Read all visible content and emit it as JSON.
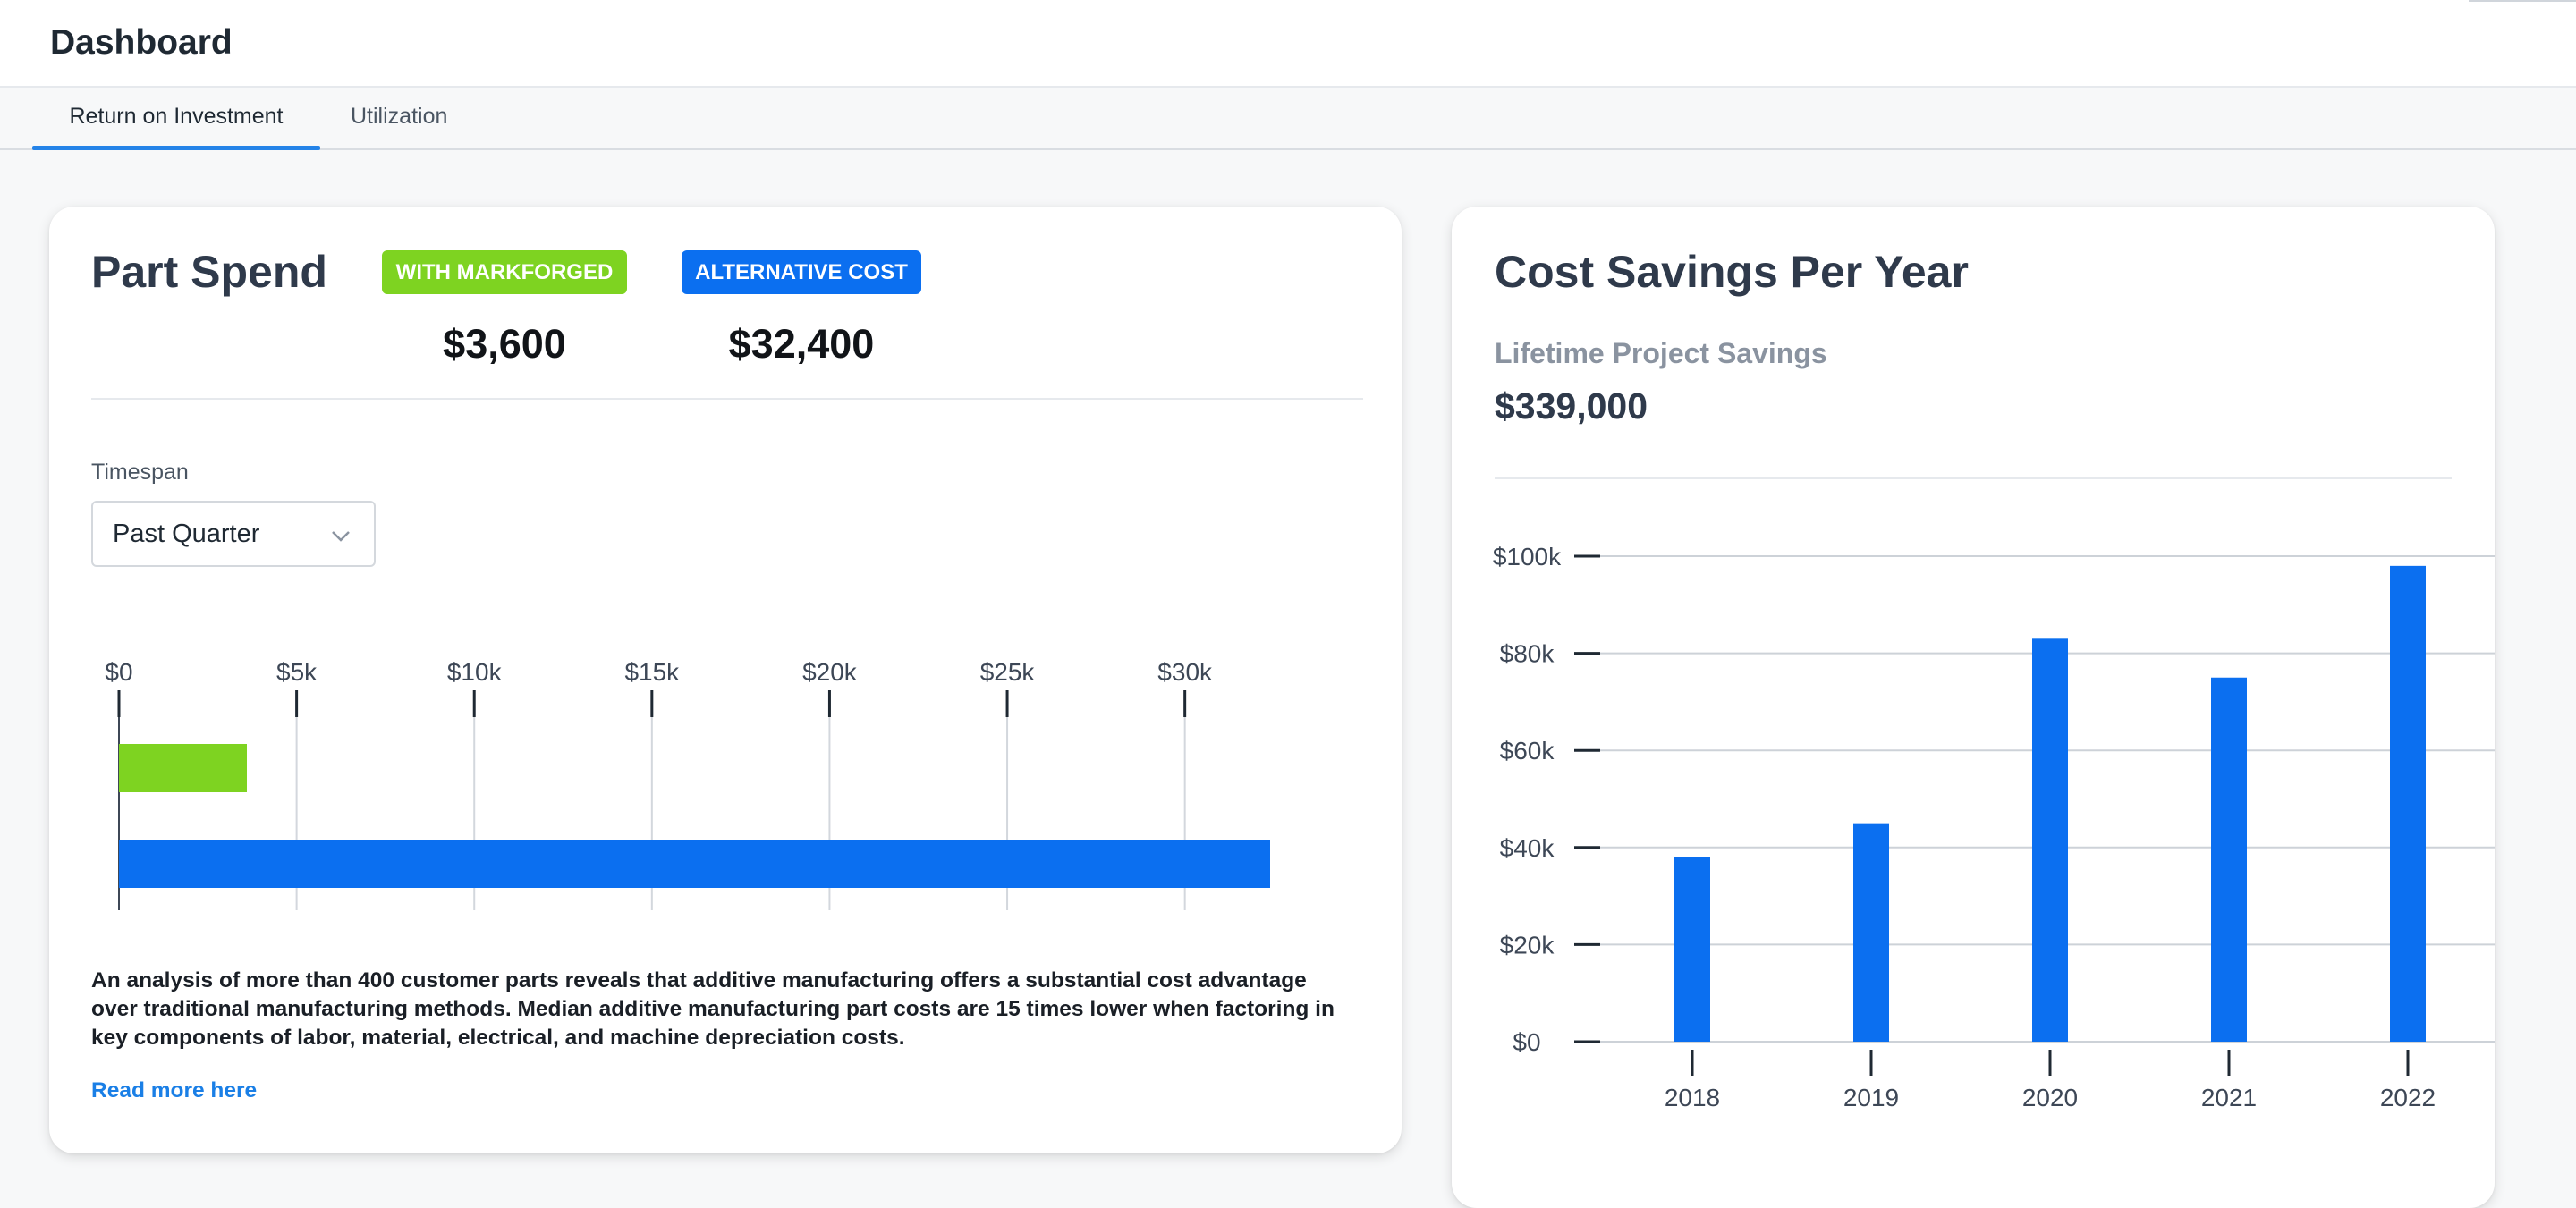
{
  "header": {
    "title": "Dashboard"
  },
  "tabs": [
    {
      "label": "Return on Investment",
      "active": true
    },
    {
      "label": "Utilization",
      "active": false
    }
  ],
  "part_spend": {
    "title": "Part Spend",
    "badge_markforged": "WITH MARKFORGED",
    "badge_alternative": "ALTERNATIVE COST",
    "value_markforged": "$3,600",
    "value_alternative": "$32,400",
    "timespan_label": "Timespan",
    "timespan_value": "Past Quarter",
    "description": "An analysis of more than 400 customer parts reveals that additive manufacturing offers a substantial cost advantage over traditional manufacturing methods. Median additive manufacturing part costs are 15 times lower when factoring in key components of labor, material, electrical, and machine depreciation costs.",
    "read_more": "Read more here"
  },
  "cost_savings": {
    "title": "Cost Savings Per Year",
    "subtitle": "Lifetime Project Savings",
    "lifetime_value": "$339,000"
  },
  "colors": {
    "green": "#7ed321",
    "blue": "#0b6ff0",
    "accent": "#2483e8"
  },
  "icons": {
    "timespan_dropdown": "chevron-down-icon"
  },
  "chart_data": [
    {
      "type": "bar",
      "orientation": "horizontal",
      "title": "",
      "categories": [
        "With Markforged",
        "Alternative Cost"
      ],
      "values": [
        3600,
        32400
      ],
      "colors": [
        "#7ed321",
        "#0b6ff0"
      ],
      "xticks": [
        0,
        5000,
        10000,
        15000,
        20000,
        25000,
        30000
      ],
      "xtick_labels": [
        "$0",
        "$5k",
        "$10k",
        "$15k",
        "$20k",
        "$25k",
        "$30k"
      ],
      "xlim": [
        0,
        32400
      ],
      "grid": true
    },
    {
      "type": "bar",
      "title": "",
      "categories": [
        "2018",
        "2019",
        "2020",
        "2021",
        "2022"
      ],
      "values": [
        38000,
        45000,
        83000,
        75000,
        98000
      ],
      "yticks": [
        0,
        20000,
        40000,
        60000,
        80000,
        100000
      ],
      "ytick_labels": [
        "$0",
        "$20k",
        "$40k",
        "$60k",
        "$80k",
        "$100k"
      ],
      "ylim": [
        0,
        100000
      ],
      "grid": true,
      "color": "#0b6ff0"
    }
  ]
}
